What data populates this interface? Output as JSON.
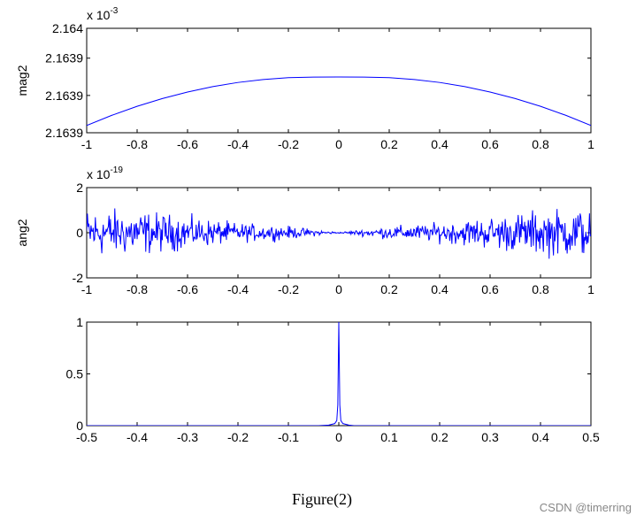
{
  "chart_data": [
    {
      "type": "line",
      "ylabel": "mag2",
      "exponent_base": "x 10",
      "exponent_power": "-3",
      "xlim": [
        -1,
        1
      ],
      "ylim": [
        2.16388,
        2.16402
      ],
      "x_ticks": [
        "-1",
        "-0.8",
        "-0.6",
        "-0.4",
        "-0.2",
        "0",
        "0.2",
        "0.4",
        "0.6",
        "0.8",
        "1"
      ],
      "x_tick_values": [
        -1,
        -0.8,
        -0.6,
        -0.4,
        -0.2,
        0,
        0.2,
        0.4,
        0.6,
        0.8,
        1
      ],
      "y_ticks": [
        "2.1639",
        "2.1639",
        "2.1639",
        "2.164"
      ],
      "y_tick_values": [
        2.16388,
        2.16393,
        2.16398,
        2.16402
      ],
      "series": [
        {
          "color": "#0000ff",
          "x": [
            -1,
            -0.9,
            -0.8,
            -0.7,
            -0.6,
            -0.5,
            -0.4,
            -0.3,
            -0.2,
            -0.1,
            0,
            0.1,
            0.2,
            0.3,
            0.4,
            0.5,
            0.6,
            0.7,
            0.8,
            0.9,
            1
          ],
          "y": [
            2.1638898,
            2.1639034,
            2.1639154,
            2.1639258,
            2.1639346,
            2.1639418,
            2.1639474,
            2.1639514,
            2.1639538,
            2.1639546,
            2.1639548,
            2.1639546,
            2.1639538,
            2.1639514,
            2.1639474,
            2.1639418,
            2.1639346,
            2.1639258,
            2.1639154,
            2.1639034,
            2.1638898
          ]
        }
      ]
    },
    {
      "type": "line",
      "ylabel": "ang2",
      "exponent_base": "x 10",
      "exponent_power": "-19",
      "xlim": [
        -1,
        1
      ],
      "ylim": [
        -2,
        2
      ],
      "x_ticks": [
        "-1",
        "-0.8",
        "-0.6",
        "-0.4",
        "-0.2",
        "0",
        "0.2",
        "0.4",
        "0.6",
        "0.8",
        "1"
      ],
      "x_tick_values": [
        -1,
        -0.8,
        -0.6,
        -0.4,
        -0.2,
        0,
        0.2,
        0.4,
        0.6,
        0.8,
        1
      ],
      "y_ticks": [
        "-2",
        "0",
        "2"
      ],
      "y_tick_values": [
        -2,
        0,
        2
      ],
      "series": [
        {
          "color": "#0000ff",
          "noise": true,
          "x_range": [
            -1,
            1
          ],
          "envelope_x": [
            -1,
            -0.8,
            -0.6,
            -0.4,
            -0.2,
            0,
            0.2,
            0.4,
            0.6,
            0.8,
            1
          ],
          "envelope_amp": [
            1.5,
            1.4,
            1.0,
            0.6,
            0.4,
            0.03,
            0.4,
            0.6,
            1.0,
            1.4,
            1.6
          ]
        }
      ]
    },
    {
      "type": "line",
      "ylabel": "",
      "xlim": [
        -0.5,
        0.5
      ],
      "ylim": [
        0,
        1
      ],
      "x_ticks": [
        "-0.5",
        "-0.4",
        "-0.3",
        "-0.2",
        "-0.1",
        "0",
        "0.1",
        "0.2",
        "0.3",
        "0.4",
        "0.5"
      ],
      "x_tick_values": [
        -0.5,
        -0.4,
        -0.3,
        -0.2,
        -0.1,
        0,
        0.1,
        0.2,
        0.3,
        0.4,
        0.5
      ],
      "y_ticks": [
        "0",
        "0.5",
        "1"
      ],
      "y_tick_values": [
        0,
        0.5,
        1
      ],
      "series": [
        {
          "color": "#0000ff",
          "x": [
            -0.5,
            -0.04,
            -0.02,
            -0.008,
            -0.004,
            -0.002,
            0,
            0.002,
            0.004,
            0.008,
            0.02,
            0.03,
            0.5
          ],
          "y": [
            0,
            0,
            0.005,
            0.02,
            0.05,
            0.2,
            1.0,
            0.2,
            0.05,
            0.02,
            0.005,
            0,
            0
          ]
        }
      ]
    }
  ],
  "caption": "Figure(2)",
  "watermark": "CSDN @timerring"
}
